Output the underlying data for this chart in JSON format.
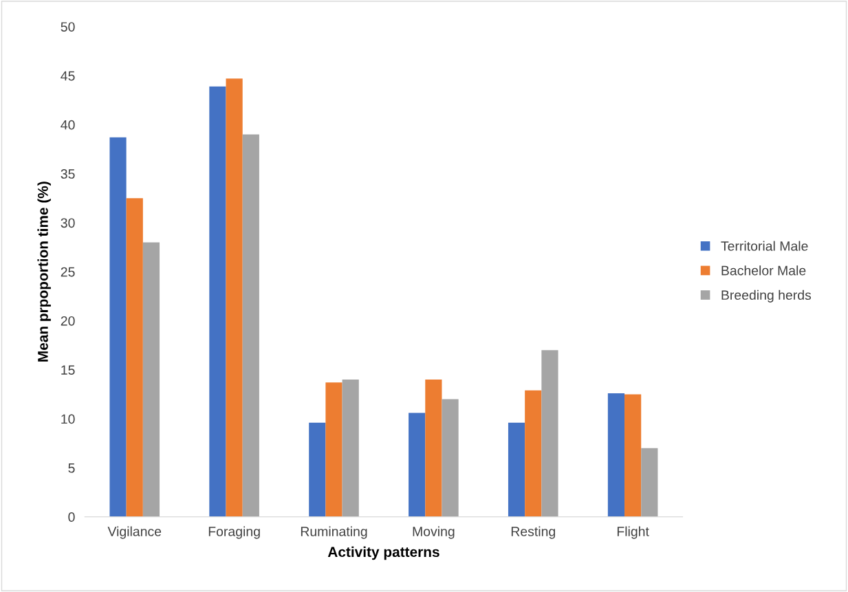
{
  "chart_data": {
    "type": "bar",
    "xlabel": "Activity patterns",
    "ylabel": "Mean prpoportion time (%)",
    "categories": [
      "Vigilance",
      "Foraging",
      "Ruminating",
      "Moving",
      "Resting",
      "Flight"
    ],
    "series": [
      {
        "name": "Territorial Male",
        "color": "#4472c4",
        "values": [
          38.7,
          43.9,
          9.6,
          10.6,
          9.6,
          12.6
        ]
      },
      {
        "name": "Bachelor Male",
        "color": "#ed7d31",
        "values": [
          32.5,
          44.7,
          13.7,
          14.0,
          12.9,
          12.5
        ]
      },
      {
        "name": "Breeding herds",
        "color": "#a5a5a5",
        "values": [
          28.0,
          39.0,
          14.0,
          12.0,
          17.0,
          7.0
        ]
      }
    ],
    "ylim": [
      0,
      50
    ],
    "yticks": [
      0,
      5,
      10,
      15,
      20,
      25,
      30,
      35,
      40,
      45,
      50
    ],
    "grid": false,
    "legend": "right"
  }
}
